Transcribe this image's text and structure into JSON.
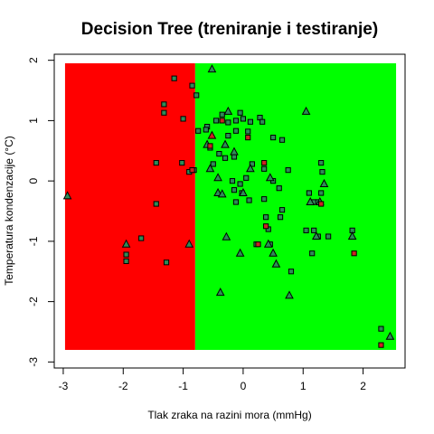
{
  "chart_data": {
    "type": "scatter",
    "title": "Decision Tree (treniranje i testiranje)",
    "xlabel": "Tlak zraka na razini mora (mmHg)",
    "ylabel": "Temperatura kondenzacije (°C)",
    "xlim": [
      -3.15,
      2.7
    ],
    "ylim": [
      -3.1,
      2.1
    ],
    "x_ticks": [
      -3,
      -2,
      -1,
      0,
      1,
      2
    ],
    "y_ticks": [
      -3,
      -2,
      -1,
      0,
      1,
      2
    ],
    "decision_regions": [
      {
        "name": "class-red",
        "color": "#ff0000",
        "x": [
          -2.97,
          -0.8
        ],
        "y": [
          -2.8,
          1.95
        ]
      },
      {
        "name": "class-green",
        "color": "#00ff00",
        "x": [
          -0.8,
          2.55
        ],
        "y": [
          -2.8,
          1.95
        ]
      }
    ],
    "series": [
      {
        "name": "train (square)",
        "marker": "square",
        "color": "#2e8b57",
        "points": [
          [
            -1.15,
            1.7
          ],
          [
            -0.85,
            1.58
          ],
          [
            -1.32,
            1.27
          ],
          [
            -1.32,
            1.13
          ],
          [
            -1.0,
            1.03
          ],
          [
            -0.78,
            1.42
          ],
          [
            -0.75,
            0.83
          ],
          [
            -0.6,
            0.9
          ],
          [
            -0.62,
            0.85
          ],
          [
            -0.45,
            1.0
          ],
          [
            -0.35,
            1.1
          ],
          [
            -0.25,
            0.97
          ],
          [
            -0.12,
            1.0
          ],
          [
            -0.05,
            1.13
          ],
          [
            0.0,
            1.03
          ],
          [
            0.12,
            0.98
          ],
          [
            0.28,
            1.05
          ],
          [
            0.32,
            0.98
          ],
          [
            0.08,
            0.82
          ],
          [
            -0.12,
            0.83
          ],
          [
            -0.25,
            0.75
          ],
          [
            0.5,
            0.72
          ],
          [
            0.65,
            0.68
          ],
          [
            -0.55,
            0.55
          ],
          [
            -0.4,
            0.45
          ],
          [
            -0.3,
            0.38
          ],
          [
            -0.15,
            0.4
          ],
          [
            0.15,
            0.28
          ],
          [
            0.35,
            0.2
          ],
          [
            0.75,
            0.18
          ],
          [
            1.3,
            0.3
          ],
          [
            1.32,
            0.15
          ],
          [
            -1.02,
            0.3
          ],
          [
            -0.9,
            0.15
          ],
          [
            -0.82,
            0.18
          ],
          [
            -0.18,
            0.0
          ],
          [
            -0.05,
            -0.05
          ],
          [
            0.05,
            0.05
          ],
          [
            0.5,
            0.0
          ],
          [
            0.6,
            -0.12
          ],
          [
            -0.15,
            -0.15
          ],
          [
            -0.12,
            -0.35
          ],
          [
            0.1,
            -0.32
          ],
          [
            0.35,
            -0.3
          ],
          [
            -0.02,
            -0.2
          ],
          [
            0.38,
            -0.6
          ],
          [
            0.65,
            -0.48
          ],
          [
            0.62,
            -0.6
          ],
          [
            1.1,
            -0.2
          ],
          [
            1.18,
            -0.35
          ],
          [
            1.3,
            -0.2
          ],
          [
            1.25,
            -0.35
          ],
          [
            -1.45,
            -0.38
          ],
          [
            1.05,
            -0.82
          ],
          [
            1.18,
            -0.82
          ],
          [
            1.25,
            -0.92
          ],
          [
            1.42,
            -0.92
          ],
          [
            1.82,
            -0.82
          ],
          [
            0.45,
            -1.05
          ],
          [
            1.15,
            -1.2
          ],
          [
            0.22,
            -1.05
          ],
          [
            0.8,
            -1.5
          ],
          [
            2.3,
            -2.45
          ],
          [
            -1.95,
            -1.22
          ],
          [
            -1.95,
            -1.33
          ],
          [
            -1.28,
            -1.35
          ],
          [
            -1.7,
            -0.95
          ],
          [
            -1.45,
            0.3
          ],
          [
            -0.5,
            0.28
          ],
          [
            0.42,
            -0.8
          ]
        ]
      },
      {
        "name": "test (triangle)",
        "marker": "triangle",
        "color": "#2e8b57",
        "points": [
          [
            -0.52,
            1.85
          ],
          [
            -0.25,
            1.15
          ],
          [
            1.05,
            1.15
          ],
          [
            -0.3,
            0.6
          ],
          [
            0.12,
            0.2
          ],
          [
            -0.55,
            0.2
          ],
          [
            -0.42,
            0.05
          ],
          [
            -0.42,
            -0.2
          ],
          [
            -0.35,
            -0.22
          ],
          [
            0.0,
            -0.2
          ],
          [
            0.45,
            0.05
          ],
          [
            1.12,
            -0.35
          ],
          [
            1.28,
            -0.35
          ],
          [
            1.35,
            -0.05
          ],
          [
            1.22,
            -0.92
          ],
          [
            1.82,
            -0.92
          ],
          [
            -0.28,
            -0.93
          ],
          [
            0.42,
            -1.05
          ],
          [
            0.5,
            -1.2
          ],
          [
            0.55,
            -1.38
          ],
          [
            -0.05,
            -1.2
          ],
          [
            -0.38,
            -1.85
          ],
          [
            0.77,
            -1.9
          ],
          [
            2.45,
            -2.58
          ],
          [
            -0.9,
            -1.05
          ],
          [
            -1.95,
            -1.05
          ],
          [
            -2.93,
            -0.25
          ],
          [
            -0.6,
            0.6
          ],
          [
            -0.15,
            0.48
          ]
        ]
      },
      {
        "name": "misclassified (red fill)",
        "marker": "mixed",
        "color": "#cc2222",
        "points": [
          {
            "x": -0.55,
            "y": 0.58,
            "marker": "square"
          },
          {
            "x": -0.35,
            "y": 1.0,
            "marker": "square"
          },
          {
            "x": -0.52,
            "y": 0.75,
            "marker": "triangle"
          },
          {
            "x": 0.08,
            "y": 0.72,
            "marker": "square"
          },
          {
            "x": 0.35,
            "y": 0.3,
            "marker": "square"
          },
          {
            "x": 0.38,
            "y": -0.75,
            "marker": "square"
          },
          {
            "x": 0.25,
            "y": -1.05,
            "marker": "square"
          },
          {
            "x": 1.3,
            "y": -0.38,
            "marker": "square"
          },
          {
            "x": 1.85,
            "y": -1.2,
            "marker": "square"
          },
          {
            "x": 2.3,
            "y": -2.72,
            "marker": "square"
          },
          {
            "x": -0.85,
            "y": 0.18,
            "marker": "square"
          }
        ]
      }
    ]
  }
}
